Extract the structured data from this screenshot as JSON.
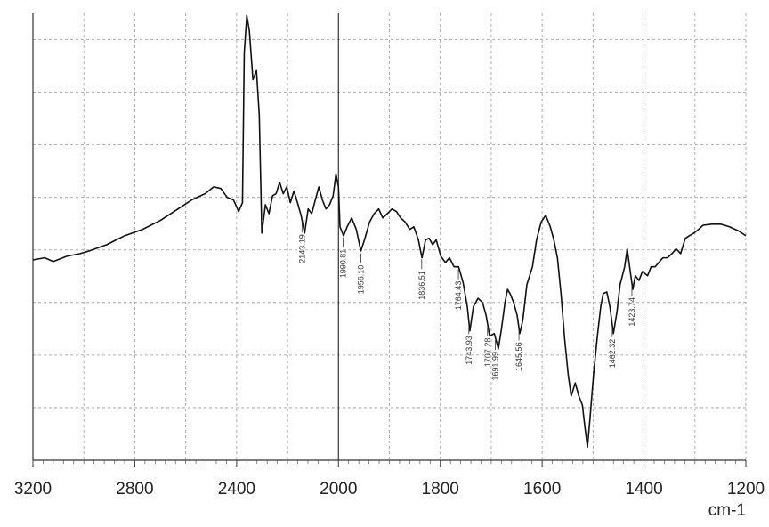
{
  "chart_data": {
    "type": "line",
    "xlabel": "cm-1",
    "color": "#111111",
    "grid": true,
    "x": [
      3200,
      3154,
      3120,
      3067,
      3014,
      2980,
      2910,
      2840,
      2770,
      2700,
      2630,
      2577,
      2524,
      2490,
      2462,
      2437,
      2412,
      2392,
      2377,
      2370,
      2360,
      2350,
      2336,
      2322,
      2311,
      2301,
      2287,
      2273,
      2259,
      2245,
      2231,
      2217,
      2203,
      2189,
      2175,
      2161,
      2147,
      2133,
      2119,
      2105,
      2091,
      2077,
      2063,
      2049,
      2035,
      2021,
      2010,
      2000,
      1997,
      1990,
      1983,
      1974,
      1965,
      1956,
      1948,
      1939,
      1930,
      1921,
      1913,
      1904,
      1895,
      1886,
      1878,
      1869,
      1860,
      1852,
      1843,
      1836,
      1829,
      1822,
      1815,
      1808,
      1799,
      1790,
      1782,
      1773,
      1764,
      1755,
      1747,
      1742,
      1735,
      1726,
      1717,
      1710,
      1703,
      1694,
      1686,
      1680,
      1673,
      1668,
      1663,
      1656,
      1649,
      1644,
      1638,
      1630,
      1619,
      1611,
      1602,
      1593,
      1584,
      1577,
      1570,
      1563,
      1556,
      1549,
      1543,
      1535,
      1528,
      1521,
      1516,
      1511,
      1506,
      1499,
      1492,
      1485,
      1480,
      1473,
      1467,
      1460,
      1453,
      1447,
      1438,
      1433,
      1427,
      1422,
      1417,
      1410,
      1403,
      1393,
      1386,
      1378,
      1371,
      1363,
      1354,
      1345,
      1337,
      1328,
      1319,
      1311,
      1302,
      1293,
      1284,
      1267,
      1249,
      1232,
      1214,
      1200
    ],
    "values": [
      3.81,
      3.85,
      3.78,
      3.88,
      3.93,
      3.98,
      4.1,
      4.27,
      4.39,
      4.56,
      4.78,
      4.95,
      5.07,
      5.2,
      5.17,
      5.0,
      4.95,
      4.73,
      4.9,
      7.75,
      8.46,
      8.17,
      7.24,
      7.41,
      6.56,
      4.32,
      4.86,
      4.69,
      5.03,
      5.07,
      5.29,
      5.07,
      5.2,
      4.9,
      5.12,
      4.9,
      4.66,
      4.32,
      4.78,
      4.69,
      4.95,
      5.2,
      4.95,
      4.78,
      4.86,
      5.03,
      5.44,
      5.2,
      4.44,
      4.27,
      4.44,
      4.61,
      4.39,
      3.98,
      4.22,
      4.53,
      4.69,
      4.78,
      4.61,
      4.69,
      4.78,
      4.73,
      4.61,
      4.53,
      4.39,
      4.44,
      4.19,
      3.85,
      4.19,
      4.22,
      4.1,
      4.19,
      3.88,
      3.76,
      3.85,
      3.68,
      3.68,
      3.37,
      2.92,
      2.46,
      2.92,
      3.08,
      3.0,
      2.75,
      2.36,
      2.41,
      2.12,
      2.49,
      3.0,
      3.25,
      3.17,
      3.0,
      2.75,
      2.41,
      2.66,
      3.34,
      3.68,
      4.19,
      4.53,
      4.66,
      4.44,
      4.19,
      3.85,
      3.17,
      2.32,
      1.64,
      1.22,
      1.47,
      1.22,
      1.05,
      0.63,
      0.25,
      0.8,
      1.64,
      2.32,
      2.92,
      3.17,
      3.2,
      2.92,
      2.41,
      2.83,
      3.34,
      3.68,
      4.02,
      3.59,
      3.25,
      3.51,
      3.42,
      3.59,
      3.51,
      3.68,
      3.68,
      3.76,
      3.85,
      3.85,
      3.93,
      4.02,
      3.93,
      4.22,
      4.27,
      4.32,
      4.39,
      4.47,
      4.49,
      4.49,
      4.44,
      4.36,
      4.27
    ],
    "xticks": [
      3200,
      2800,
      2400,
      2000,
      1800,
      1600,
      1400,
      1200
    ],
    "ylim": [
      0,
      8.5
    ],
    "yticks": [
      1,
      2,
      3,
      4,
      5,
      6,
      7,
      8
    ],
    "peaks": [
      {
        "value": 2143.19,
        "label": "2143.19"
      },
      {
        "value": 1990.81,
        "label": "1990.81"
      },
      {
        "value": 1956.1,
        "label": "1956.10"
      },
      {
        "value": 1836.51,
        "label": "1836.51"
      },
      {
        "value": 1764.43,
        "label": "1764.43"
      },
      {
        "value": 1743.93,
        "label": "1743.93"
      },
      {
        "value": 1707.28,
        "label": "1707.28"
      },
      {
        "value": 1691.99,
        "label": "1691.99"
      },
      {
        "value": 1645.56,
        "label": "1645.56"
      },
      {
        "value": 1462.32,
        "label": "1462.32"
      },
      {
        "value": 1423.74,
        "label": "1423.74"
      }
    ]
  }
}
